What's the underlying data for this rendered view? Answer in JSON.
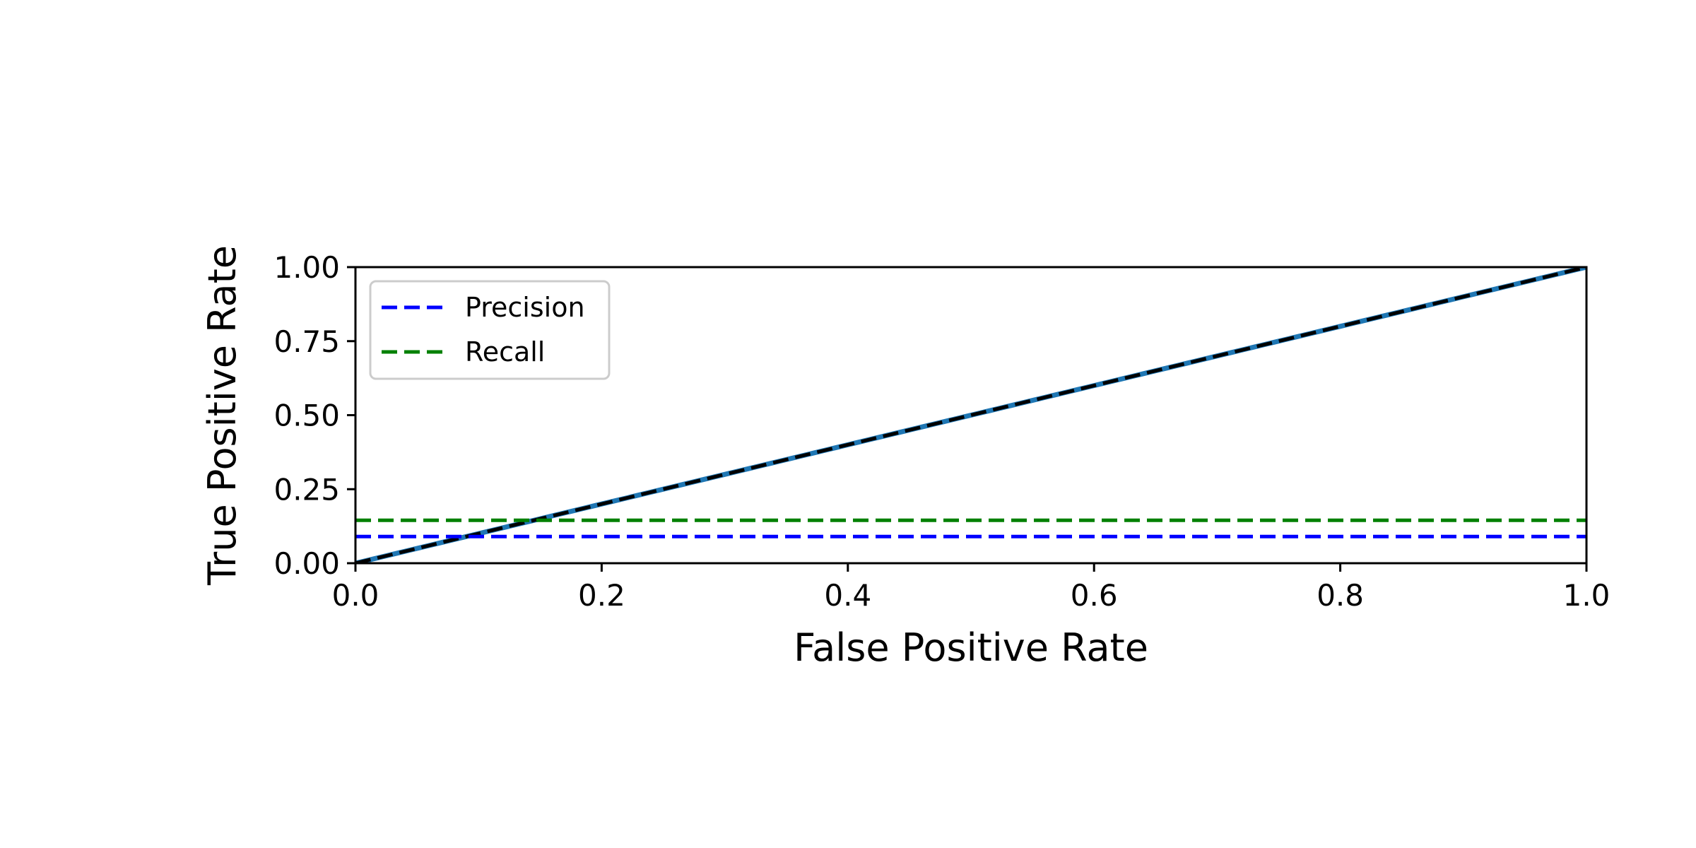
{
  "chart_data": {
    "type": "line",
    "title": "",
    "xlabel": "False Positive Rate",
    "ylabel": "True Positive Rate",
    "xlim": [
      0.0,
      1.0
    ],
    "ylim": [
      0.0,
      1.0
    ],
    "xticks": [
      "0.0",
      "0.2",
      "0.4",
      "0.6",
      "0.8",
      "1.0"
    ],
    "yticks": [
      "0.00",
      "0.25",
      "0.50",
      "0.75",
      "1.00"
    ],
    "grid": false,
    "legend": {
      "placement": "top-left",
      "entries": [
        "Precision",
        "Recall"
      ]
    },
    "series": [
      {
        "name": "Precision",
        "style": "dashed",
        "color": "#0000ff",
        "x": [
          0.0,
          1.0
        ],
        "y": [
          0.09,
          0.09
        ]
      },
      {
        "name": "Recall",
        "style": "dashed",
        "color": "#008000",
        "x": [
          0.0,
          1.0
        ],
        "y": [
          0.145,
          0.145
        ]
      },
      {
        "style": "solid",
        "color": "#1f77b4",
        "x": [
          0.0,
          0.1,
          0.2,
          0.3,
          0.4,
          0.5,
          0.6,
          0.7,
          0.8,
          0.9,
          1.0
        ],
        "y": [
          0.0,
          0.1,
          0.2,
          0.3,
          0.4,
          0.5,
          0.6,
          0.7,
          0.8,
          0.9,
          1.0
        ]
      },
      {
        "style": "dashed",
        "color": "#000000",
        "x": [
          0.0,
          1.0
        ],
        "y": [
          0.0,
          1.0
        ]
      }
    ]
  }
}
